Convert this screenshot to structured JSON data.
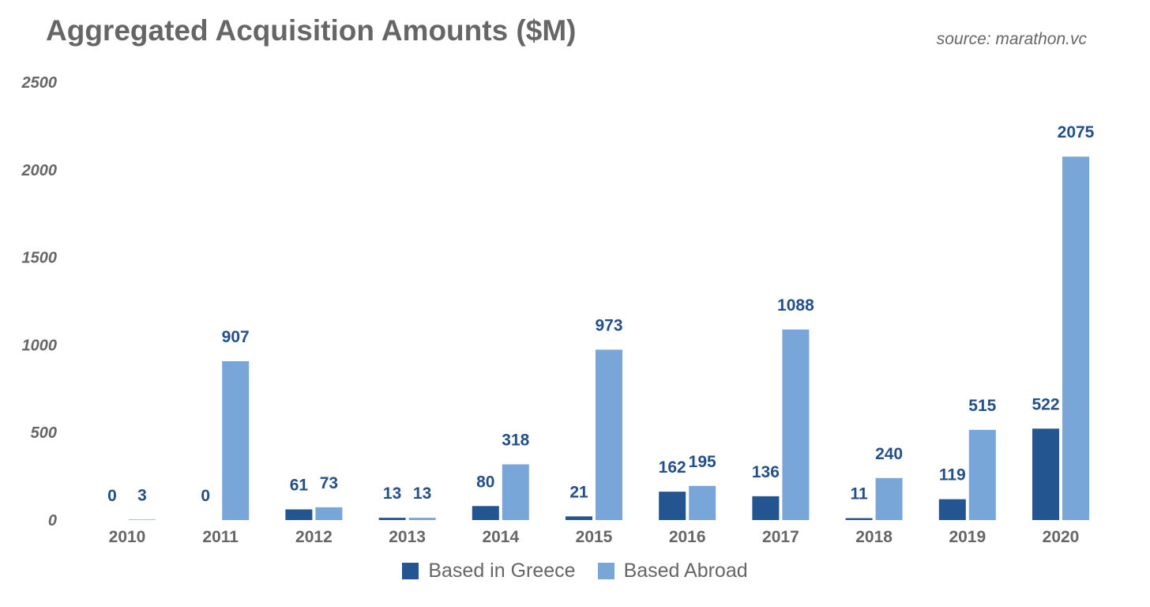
{
  "header": {
    "title": "Aggregated Acquisition Amounts ($M)",
    "source": "source: marathon.vc"
  },
  "colors": {
    "greece": "#235591",
    "abroad": "#79a6d8",
    "label": "#24508a",
    "axis_text": "#666666"
  },
  "chart_data": {
    "type": "bar",
    "title": "Aggregated Acquisition Amounts ($M)",
    "xlabel": "",
    "ylabel": "",
    "categories": [
      "2010",
      "2011",
      "2012",
      "2013",
      "2014",
      "2015",
      "2016",
      "2017",
      "2018",
      "2019",
      "2020"
    ],
    "series": [
      {
        "name": "Based in Greece",
        "values": [
          0,
          0,
          61,
          13,
          80,
          21,
          162,
          136,
          11,
          119,
          522
        ]
      },
      {
        "name": "Based Abroad",
        "values": [
          3,
          907,
          73,
          13,
          318,
          973,
          195,
          1088,
          240,
          515,
          2075
        ]
      }
    ],
    "yticks": [
      0,
      500,
      1000,
      1500,
      2000,
      2500
    ],
    "ylim": [
      0,
      2500
    ],
    "grid": false,
    "legend_position": "bottom"
  }
}
